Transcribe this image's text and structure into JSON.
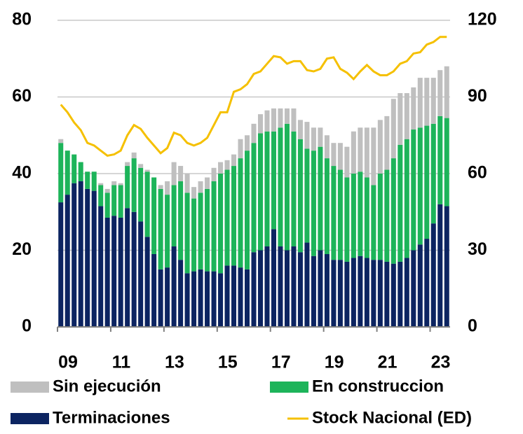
{
  "chart_data": {
    "type": "bar",
    "stacked": true,
    "categories": [
      "09",
      null,
      null,
      null,
      null,
      null,
      null,
      null,
      "11",
      null,
      null,
      null,
      null,
      null,
      null,
      null,
      "13",
      null,
      null,
      null,
      null,
      null,
      null,
      null,
      "15",
      null,
      null,
      null,
      null,
      null,
      null,
      null,
      "17",
      null,
      null,
      null,
      null,
      null,
      null,
      null,
      "19",
      null,
      null,
      null,
      null,
      null,
      null,
      null,
      "21",
      null,
      null,
      null,
      null,
      null,
      null,
      null,
      "23",
      null,
      null
    ],
    "series": [
      {
        "name": "Terminaciones",
        "color": "#0c2461",
        "values": [
          32.5,
          34.5,
          37.5,
          38,
          36,
          35.5,
          31.5,
          28.5,
          29,
          28.5,
          31,
          30,
          27.5,
          23.5,
          19,
          15,
          15.5,
          21,
          17.5,
          14,
          14.5,
          15,
          14.5,
          14.5,
          14,
          16,
          16,
          15.5,
          15,
          19.5,
          20,
          21,
          25.5,
          21,
          20,
          21,
          19.5,
          22,
          18.5,
          20,
          19,
          17.5,
          17.5,
          17,
          18,
          18.5,
          18,
          17.5,
          17.5,
          17,
          16.5,
          17,
          18,
          20,
          21.5,
          23,
          27,
          32,
          31.5
        ]
      },
      {
        "name": "En construccion",
        "color": "#1db45a",
        "values": [
          15.5,
          11.5,
          7.5,
          5,
          4.5,
          5,
          5.5,
          6.5,
          8,
          8.5,
          11,
          14,
          14,
          17,
          20,
          21,
          19,
          16,
          20.5,
          21,
          19,
          20,
          21.5,
          23.5,
          26,
          25,
          26,
          28.5,
          31,
          28.5,
          30.5,
          30,
          25.5,
          31,
          33,
          30,
          29.5,
          24.5,
          27.5,
          27,
          25,
          24.5,
          23.5,
          22,
          22,
          22,
          21,
          19.5,
          22.5,
          24,
          27.5,
          30.5,
          31,
          31.5,
          30.5,
          29.5,
          26,
          23,
          23
        ]
      },
      {
        "name": "Sin ejecución",
        "color": "#bfbfbf",
        "values": [
          1,
          0,
          0,
          0,
          0,
          0,
          0.5,
          1,
          1,
          0.5,
          1,
          1.5,
          1,
          0.5,
          0,
          1,
          3.5,
          6,
          4,
          5,
          3,
          3,
          3,
          3.5,
          3,
          2.5,
          3,
          5,
          4,
          5,
          5,
          5.5,
          6,
          5,
          4,
          6,
          5,
          7,
          6,
          5,
          6,
          6,
          7,
          8,
          11,
          11.5,
          13,
          15,
          14,
          14,
          15.5,
          13.5,
          12,
          11,
          13,
          12.5,
          12,
          12,
          13.5
        ]
      },
      {
        "name": "Stock Nacional (ED)",
        "color": "#f5c000",
        "type": "line",
        "axis": "y2",
        "values": [
          87,
          84,
          80,
          77,
          72,
          71,
          69,
          67,
          67.5,
          69,
          75,
          79,
          77.5,
          74,
          71,
          68,
          70,
          76,
          75,
          72,
          71,
          72,
          74,
          79,
          84,
          84,
          92,
          93,
          95,
          99,
          100,
          103,
          106,
          105.5,
          103,
          104,
          104,
          100.5,
          100,
          101,
          105,
          105.5,
          101,
          99.5,
          97,
          100,
          102.5,
          100,
          98.5,
          98.5,
          100,
          103,
          104,
          107,
          107.5,
          110.5,
          111.5,
          113.5,
          113.5
        ]
      }
    ],
    "ylim": [
      0,
      80
    ],
    "yticks": [
      0,
      20,
      40,
      60,
      80
    ],
    "y2lim": [
      0,
      120
    ],
    "y2ticks": [
      0,
      30,
      60,
      90,
      120
    ],
    "grid": true,
    "legend": "bottom"
  }
}
